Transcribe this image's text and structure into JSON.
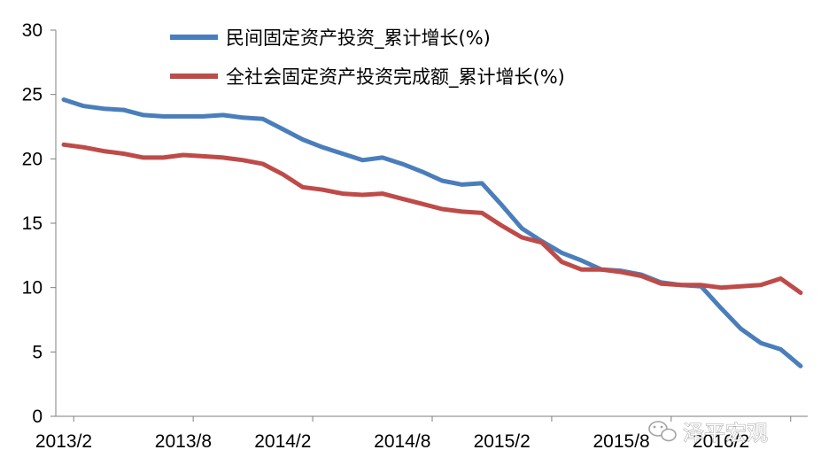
{
  "chart_data": {
    "type": "line",
    "title": "",
    "xlabel": "",
    "ylabel": "",
    "ylim": [
      0,
      30
    ],
    "yticks": [
      0,
      5,
      10,
      15,
      20,
      25,
      30
    ],
    "xtick_labels": [
      "2013/2",
      "2013/8",
      "2014/2",
      "2014/8",
      "2015/2",
      "2015/8",
      "2016/2"
    ],
    "x": [
      "2013/2",
      "2013/3",
      "2013/4",
      "2013/5",
      "2013/6",
      "2013/7",
      "2013/8",
      "2013/9",
      "2013/10",
      "2013/11",
      "2013/12",
      "2014/2",
      "2014/3",
      "2014/4",
      "2014/5",
      "2014/6",
      "2014/7",
      "2014/8",
      "2014/9",
      "2014/10",
      "2014/11",
      "2014/12",
      "2015/2",
      "2015/3",
      "2015/4",
      "2015/5",
      "2015/6",
      "2015/7",
      "2015/8",
      "2015/9",
      "2015/10",
      "2015/11",
      "2015/12",
      "2016/2",
      "2016/3",
      "2016/4",
      "2016/5",
      "2016/6"
    ],
    "grid": false,
    "legend_position": "top",
    "series": [
      {
        "name": "民间固定资产投资_累计增长(%)",
        "color": "#4a7ebb",
        "values": [
          24.6,
          24.1,
          23.9,
          23.8,
          23.4,
          23.3,
          23.3,
          23.3,
          23.4,
          23.2,
          23.1,
          22.3,
          21.5,
          20.9,
          20.4,
          19.9,
          20.1,
          19.6,
          19.0,
          18.3,
          18.0,
          18.1,
          16.4,
          14.6,
          13.6,
          12.7,
          12.1,
          11.4,
          11.3,
          11.0,
          10.4,
          10.2,
          10.1,
          8.4,
          6.8,
          5.7,
          5.2,
          3.9
        ]
      },
      {
        "name": "全社会固定资产投资完成额_累计增长(%)",
        "color": "#be4b48",
        "values": [
          21.1,
          20.9,
          20.6,
          20.4,
          20.1,
          20.1,
          20.3,
          20.2,
          20.1,
          19.9,
          19.6,
          18.8,
          17.8,
          17.6,
          17.3,
          17.2,
          17.3,
          16.9,
          16.5,
          16.1,
          15.9,
          15.8,
          14.8,
          13.9,
          13.5,
          12.0,
          11.4,
          11.4,
          11.2,
          10.9,
          10.3,
          10.2,
          10.2,
          10.0,
          10.1,
          10.2,
          10.7,
          9.6
        ]
      }
    ]
  },
  "watermark": {
    "text": "泽平宏观",
    "icon": "wechat-icon"
  }
}
